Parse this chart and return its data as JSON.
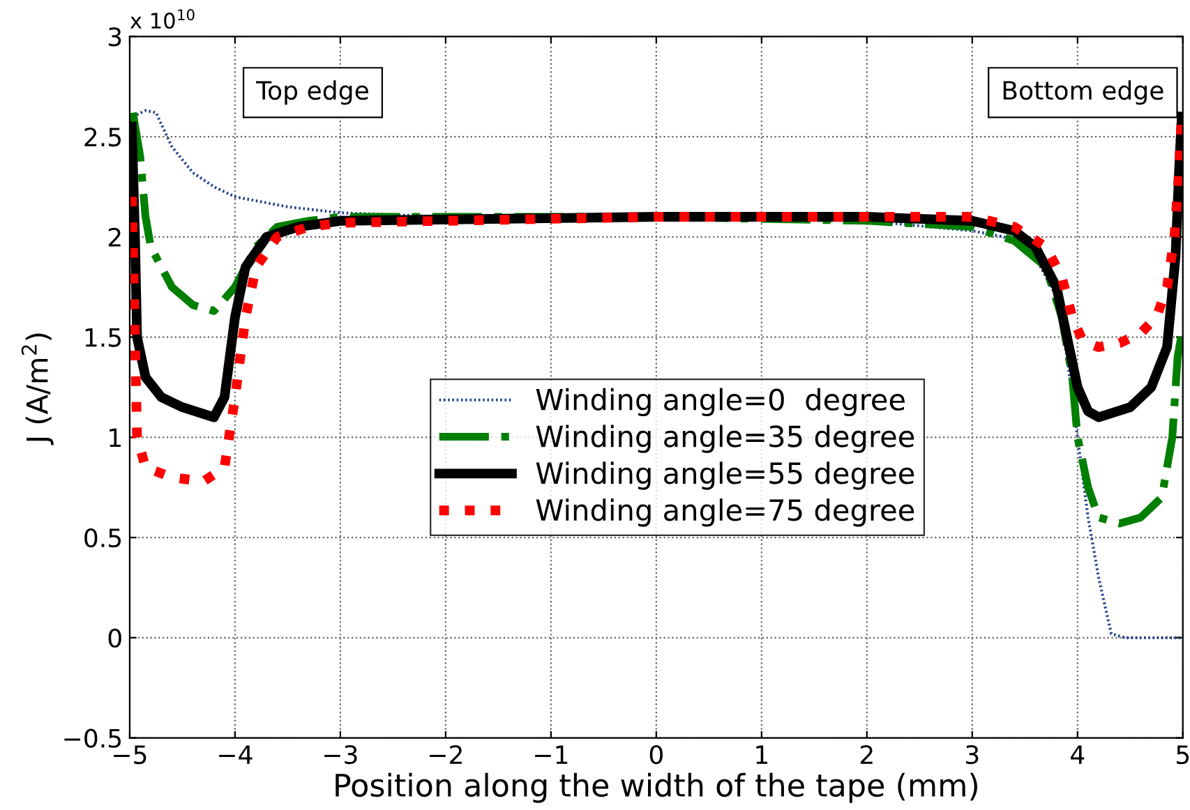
{
  "chart_data": {
    "type": "line",
    "xlabel": "Position along the width of the tape (mm)",
    "ylabel": "J (A/m$^{2}$)",
    "xlim": [
      -5,
      5
    ],
    "xticks": [
      {
        "value": -5,
        "label": "−5"
      },
      {
        "value": -4,
        "label": "−4"
      },
      {
        "value": -3,
        "label": "−3"
      },
      {
        "value": -2,
        "label": "−2"
      },
      {
        "value": -1,
        "label": "−1"
      },
      0,
      1,
      2,
      3,
      4,
      5
    ],
    "ylim": [
      -0.5,
      3
    ],
    "yticks": [
      {
        "value": -0.5,
        "label": "−0.5"
      },
      0,
      0.5,
      1,
      1.5,
      2,
      2.5,
      3
    ],
    "grid": true,
    "legend": "center",
    "annotations": [
      "x 10$^{10}$",
      "Top edge",
      "Bottom edge"
    ],
    "series": [
      {
        "name": "Winding angle=0  degree",
        "color": "#1f3f8f",
        "line_style": "dotted",
        "x": [
          -4.97,
          -4.85,
          -4.75,
          -4.6,
          -4.4,
          -4.2,
          -4.0,
          -3.5,
          -3.0,
          -2.0,
          0,
          2.0,
          3.0,
          3.3,
          3.6,
          3.8,
          3.9,
          4.0,
          4.1,
          4.2,
          4.32,
          4.45,
          5.0
        ],
        "values": [
          2.6,
          2.63,
          2.62,
          2.45,
          2.32,
          2.25,
          2.2,
          2.15,
          2.12,
          2.1,
          2.09,
          2.08,
          2.03,
          2.0,
          1.9,
          1.7,
          1.4,
          1.0,
          0.6,
          0.3,
          0.02,
          0.0,
          0.0
        ]
      },
      {
        "name": "Winding angle=35 degree",
        "color": "#007f00",
        "line_style": "dashdot",
        "x": [
          -4.97,
          -4.9,
          -4.85,
          -4.8,
          -4.6,
          -4.4,
          -4.2,
          -4.0,
          -3.8,
          -3.6,
          -3.3,
          -3.0,
          0,
          2.0,
          3.0,
          3.4,
          3.7,
          3.85,
          3.95,
          4.0,
          4.1,
          4.2,
          4.4,
          4.6,
          4.8,
          4.9,
          4.95,
          5.0
        ],
        "values": [
          2.62,
          2.4,
          2.1,
          1.95,
          1.75,
          1.66,
          1.63,
          1.75,
          1.95,
          2.05,
          2.08,
          2.1,
          2.1,
          2.08,
          2.05,
          1.98,
          1.85,
          1.6,
          1.3,
          1.0,
          0.75,
          0.6,
          0.57,
          0.6,
          0.7,
          1.0,
          1.4,
          1.55
        ]
      },
      {
        "name": "Winding angle=55 degree",
        "color": "#000000",
        "line_style": "solid",
        "x": [
          -4.98,
          -4.95,
          -4.93,
          -4.85,
          -4.7,
          -4.5,
          -4.2,
          -4.1,
          -4.0,
          -3.9,
          -3.7,
          -3.4,
          -3.0,
          0,
          2.0,
          3.0,
          3.4,
          3.6,
          3.8,
          3.9,
          4.0,
          4.1,
          4.2,
          4.5,
          4.7,
          4.85,
          4.93,
          4.97,
          4.99
        ],
        "values": [
          2.55,
          2.0,
          1.5,
          1.3,
          1.2,
          1.15,
          1.1,
          1.2,
          1.6,
          1.85,
          2.0,
          2.05,
          2.08,
          2.1,
          2.1,
          2.08,
          2.03,
          1.95,
          1.75,
          1.5,
          1.25,
          1.13,
          1.1,
          1.15,
          1.25,
          1.45,
          1.9,
          2.4,
          2.6
        ]
      },
      {
        "name": "Winding angle=75 degree",
        "color": "#ff0000",
        "line_style": "dotted",
        "x": [
          -4.98,
          -4.95,
          -4.93,
          -4.85,
          -4.6,
          -4.3,
          -4.1,
          -4.0,
          -3.9,
          -3.8,
          -3.6,
          -3.3,
          -3.0,
          0,
          2.0,
          3.0,
          3.4,
          3.7,
          3.85,
          3.95,
          4.05,
          4.2,
          4.4,
          4.6,
          4.75,
          4.85,
          4.92,
          4.96,
          4.99
        ],
        "values": [
          2.2,
          1.5,
          1.0,
          0.85,
          0.8,
          0.78,
          0.85,
          1.2,
          1.6,
          1.85,
          2.0,
          2.05,
          2.07,
          2.1,
          2.1,
          2.1,
          2.05,
          1.95,
          1.8,
          1.6,
          1.48,
          1.45,
          1.47,
          1.52,
          1.6,
          1.75,
          2.0,
          2.3,
          2.6
        ]
      }
    ]
  }
}
